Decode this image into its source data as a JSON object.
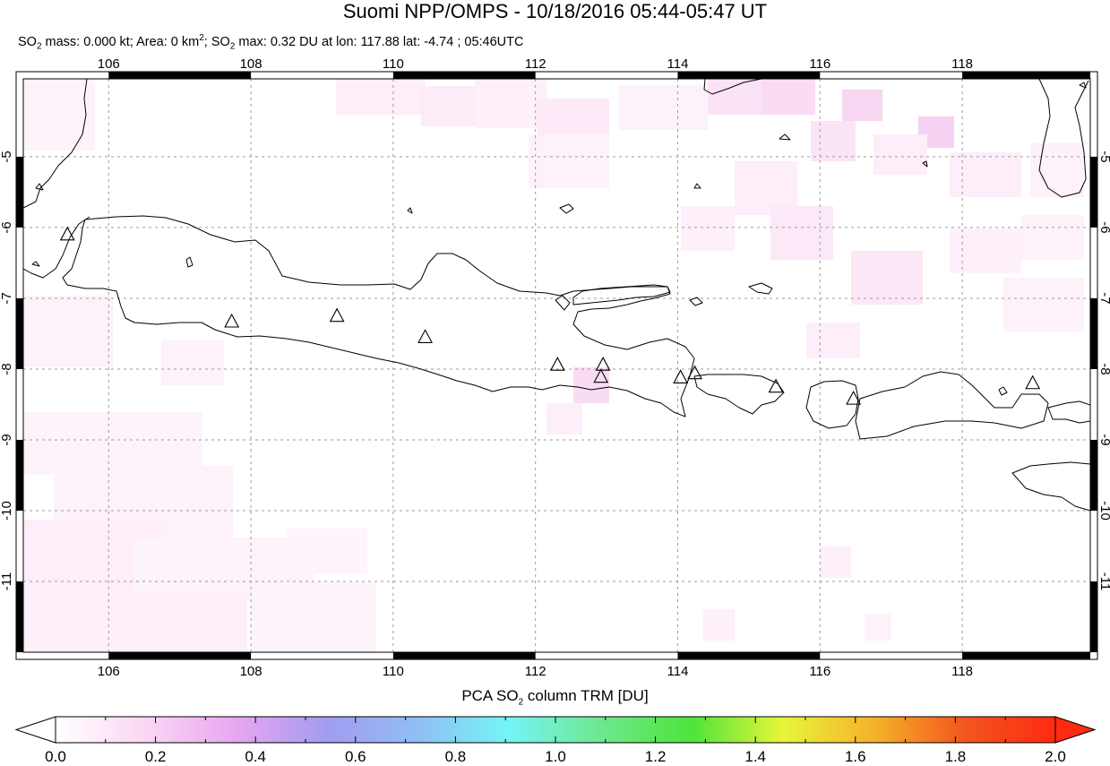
{
  "header": {
    "title": "Suomi NPP/OMPS - 10/18/2016 05:44-05:47 UT",
    "sub": {
      "p1": "SO",
      "s1": "2",
      "p2": " mass: 0.000 kt; Area: 0 km",
      "s2": "2",
      "p3": "; SO",
      "s3": "2",
      "p4": " max: 0.32 DU at lon: 117.88 lat: -4.74 ; 05:46UTC"
    }
  },
  "map": {
    "lon_range": [
      104.8,
      119.8
    ],
    "lat_range": [
      -12.0,
      -3.9
    ],
    "lon_ticks": [
      "106",
      "108",
      "110",
      "112",
      "114",
      "116",
      "118"
    ],
    "lat_ticks": [
      "-5",
      "-6",
      "-7",
      "-8",
      "-9",
      "-10",
      "-11"
    ],
    "volcanoes": [
      {
        "lon": 105.42,
        "lat": -6.1
      },
      {
        "lon": 107.73,
        "lat": -7.33
      },
      {
        "lon": 109.21,
        "lat": -7.25
      },
      {
        "lon": 110.45,
        "lat": -7.55
      },
      {
        "lon": 112.31,
        "lat": -7.94
      },
      {
        "lon": 112.95,
        "lat": -7.94
      },
      {
        "lon": 112.92,
        "lat": -8.11
      },
      {
        "lon": 114.04,
        "lat": -8.12
      },
      {
        "lon": 114.24,
        "lat": -8.06
      },
      {
        "lon": 115.38,
        "lat": -8.25
      },
      {
        "lon": 116.47,
        "lat": -8.42
      },
      {
        "lon": 118.99,
        "lat": -8.2
      }
    ]
  },
  "colorbar": {
    "title_pre": "PCA SO",
    "title_sub": "2",
    "title_post": " column TRM [DU]",
    "labels": [
      "0.0",
      "0.2",
      "0.4",
      "0.6",
      "0.8",
      "1.0",
      "1.2",
      "1.4",
      "1.6",
      "1.8",
      "2.0"
    ],
    "range": [
      0.0,
      2.0
    ],
    "colors": [
      "#ffffff",
      "#fbd6f3",
      "#e6a6f0",
      "#a29cf0",
      "#8fbff5",
      "#73f5f5",
      "#6ee88e",
      "#4ee43a",
      "#e8f53a",
      "#f5b22a",
      "#f3561f",
      "#ff2a12"
    ]
  }
}
